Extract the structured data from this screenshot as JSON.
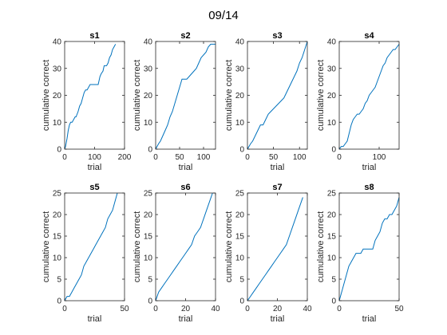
{
  "figure": {
    "title": "09/14"
  },
  "style": {
    "line_color": "#0072bd",
    "axis_color": "#262626"
  },
  "chart_data": [
    {
      "type": "line",
      "title": "s1",
      "xlabel": "trial",
      "ylabel": "cumulative correct",
      "xlim": [
        0,
        200
      ],
      "ylim": [
        0,
        40
      ],
      "xticks": [
        0,
        100,
        200
      ],
      "yticks": [
        0,
        10,
        20,
        30,
        40
      ],
      "x": [
        0,
        3,
        8,
        12,
        16,
        20,
        25,
        30,
        35,
        38,
        45,
        50,
        55,
        60,
        65,
        70,
        75,
        80,
        85,
        90,
        95,
        100,
        105,
        112,
        118,
        122,
        128,
        132,
        140,
        145,
        150,
        155,
        160,
        165,
        170
      ],
      "y": [
        0,
        1,
        4,
        7,
        9,
        10,
        10,
        11,
        12,
        12,
        14,
        16,
        17,
        19,
        21,
        22,
        22,
        23,
        24,
        24,
        24,
        24,
        24,
        24,
        27,
        28,
        29,
        31,
        31,
        32,
        34,
        35,
        37,
        38,
        39
      ]
    },
    {
      "type": "line",
      "title": "s2",
      "xlabel": "trial",
      "ylabel": "cumulative correct",
      "xlim": [
        0,
        125
      ],
      "ylim": [
        0,
        40
      ],
      "xticks": [
        0,
        50,
        100
      ],
      "yticks": [
        0,
        10,
        20,
        30,
        40
      ],
      "x": [
        0,
        3,
        6,
        10,
        15,
        20,
        25,
        30,
        35,
        40,
        45,
        50,
        55,
        60,
        65,
        70,
        75,
        80,
        85,
        90,
        95,
        100,
        105,
        110,
        115,
        120,
        125
      ],
      "y": [
        0,
        1,
        2,
        3,
        5,
        7,
        9,
        12,
        14,
        17,
        20,
        23,
        26,
        26,
        26,
        27,
        28,
        29,
        30,
        32,
        34,
        35,
        36,
        38,
        39,
        39,
        39
      ]
    },
    {
      "type": "line",
      "title": "s3",
      "xlabel": "trial",
      "ylabel": "cumulative correct",
      "xlim": [
        0,
        115
      ],
      "ylim": [
        0,
        40
      ],
      "xticks": [
        0,
        50,
        100
      ],
      "yticks": [
        0,
        10,
        20,
        30,
        40
      ],
      "x": [
        0,
        3,
        6,
        10,
        15,
        20,
        25,
        30,
        35,
        40,
        45,
        50,
        55,
        60,
        65,
        70,
        75,
        80,
        85,
        90,
        95,
        100,
        105,
        110,
        115
      ],
      "y": [
        0,
        1,
        2,
        3,
        5,
        7,
        9,
        9,
        11,
        13,
        14,
        15,
        16,
        17,
        18,
        19,
        21,
        23,
        25,
        27,
        29,
        32,
        34,
        37,
        40
      ]
    },
    {
      "type": "line",
      "title": "s4",
      "xlabel": "trial",
      "ylabel": "cumulative correct",
      "xlim": [
        0,
        150
      ],
      "ylim": [
        0,
        40
      ],
      "xticks": [
        0,
        100
      ],
      "yticks": [
        0,
        10,
        20,
        30,
        40
      ],
      "x": [
        0,
        5,
        10,
        15,
        20,
        25,
        30,
        35,
        40,
        45,
        50,
        55,
        60,
        65,
        70,
        75,
        80,
        85,
        90,
        95,
        100,
        105,
        110,
        115,
        120,
        125,
        130,
        135,
        140,
        145,
        150
      ],
      "y": [
        0,
        1,
        1,
        2,
        3,
        6,
        9,
        11,
        12,
        13,
        13,
        14,
        15,
        17,
        18,
        20,
        21,
        22,
        23,
        25,
        27,
        29,
        31,
        32,
        34,
        35,
        36,
        37,
        37,
        38,
        39
      ]
    },
    {
      "type": "line",
      "title": "s5",
      "xlabel": "trial",
      "ylabel": "cumulative correct",
      "xlim": [
        0,
        50
      ],
      "ylim": [
        0,
        25
      ],
      "xticks": [
        0,
        50
      ],
      "yticks": [
        0,
        5,
        10,
        15,
        20,
        25
      ],
      "x": [
        0,
        2,
        4,
        6,
        8,
        10,
        12,
        14,
        16,
        18,
        20,
        22,
        24,
        26,
        28,
        30,
        32,
        34,
        36,
        38,
        40,
        42,
        44
      ],
      "y": [
        0,
        1,
        1,
        2,
        3,
        4,
        5,
        6,
        8,
        9,
        10,
        11,
        12,
        13,
        14,
        15,
        16,
        17,
        19,
        20,
        21,
        23,
        25
      ]
    },
    {
      "type": "line",
      "title": "s6",
      "xlabel": "trial",
      "ylabel": "cumulative correct",
      "xlim": [
        0,
        40
      ],
      "ylim": [
        0,
        25
      ],
      "xticks": [
        0,
        20,
        40
      ],
      "yticks": [
        0,
        5,
        10,
        15,
        20,
        25
      ],
      "x": [
        0,
        1,
        2,
        4,
        6,
        8,
        10,
        12,
        14,
        16,
        18,
        20,
        22,
        24,
        26,
        28,
        30,
        32,
        34,
        36,
        38
      ],
      "y": [
        0,
        1,
        2,
        3,
        4,
        5,
        6,
        7,
        8,
        9,
        10,
        11,
        12,
        13,
        15,
        16,
        17,
        19,
        21,
        23,
        25
      ]
    },
    {
      "type": "line",
      "title": "s7",
      "xlabel": "trial",
      "ylabel": "cumulative correct",
      "xlim": [
        0,
        40
      ],
      "ylim": [
        0,
        25
      ],
      "xticks": [
        0,
        20,
        40
      ],
      "yticks": [
        0,
        5,
        10,
        15,
        20,
        25
      ],
      "x": [
        0,
        2,
        4,
        6,
        8,
        10,
        12,
        14,
        16,
        18,
        20,
        22,
        24,
        26,
        28,
        30,
        32,
        34,
        36,
        37
      ],
      "y": [
        0,
        1,
        2,
        3,
        4,
        5,
        6,
        7,
        8,
        9,
        10,
        11,
        12,
        13,
        15,
        17,
        19,
        21,
        23,
        24
      ]
    },
    {
      "type": "line",
      "title": "s8",
      "xlabel": "trial",
      "ylabel": "cumulative correct",
      "xlim": [
        0,
        50
      ],
      "ylim": [
        0,
        25
      ],
      "xticks": [
        0,
        50
      ],
      "yticks": [
        0,
        5,
        10,
        15,
        20,
        25
      ],
      "x": [
        0,
        2,
        4,
        6,
        8,
        10,
        12,
        14,
        16,
        18,
        20,
        22,
        24,
        26,
        28,
        30,
        32,
        34,
        36,
        38,
        40,
        42,
        44,
        46,
        48,
        50
      ],
      "y": [
        0,
        2,
        4,
        6,
        8,
        9,
        10,
        11,
        11,
        11,
        12,
        12,
        12,
        12,
        12,
        14,
        15,
        16,
        18,
        19,
        19,
        20,
        20,
        21,
        22,
        24
      ]
    }
  ]
}
